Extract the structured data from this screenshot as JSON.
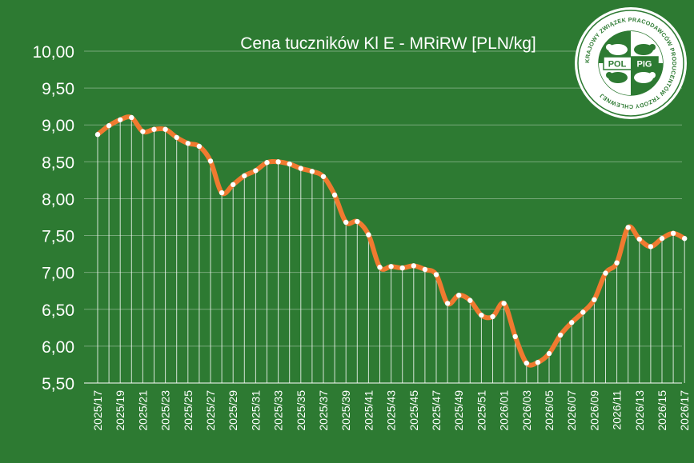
{
  "chart_data": {
    "type": "line",
    "title": "Cena tuczników Kl E - MRiRW [PLN/kg]",
    "ylim": [
      5.5,
      10.0
    ],
    "yticks": [
      "5,50",
      "6,00",
      "6,50",
      "7,00",
      "7,50",
      "8,00",
      "8,50",
      "9,00",
      "9,50",
      "10,00"
    ],
    "ytick_values": [
      5.5,
      6.0,
      6.5,
      7.0,
      7.5,
      8.0,
      8.5,
      9.0,
      9.5,
      10.0
    ],
    "grid": true,
    "x": [
      "2025/17",
      "2025/18",
      "2025/19",
      "2025/20",
      "2025/21",
      "2025/22",
      "2025/23",
      "2025/24",
      "2025/25",
      "2025/26",
      "2025/27",
      "2025/28",
      "2025/29",
      "2025/30",
      "2025/31",
      "2025/32",
      "2025/33",
      "2025/34",
      "2025/35",
      "2025/36",
      "2025/37",
      "2025/38",
      "2025/39",
      "2025/40",
      "2025/41",
      "2025/42",
      "2025/43",
      "2025/44",
      "2025/45",
      "2025/46",
      "2025/47",
      "2025/48",
      "2025/49",
      "2025/50",
      "2025/51",
      "2025/52",
      "2026/01",
      "2026/02",
      "2026/03",
      "2026/04",
      "2026/05",
      "2026/06",
      "2026/07",
      "2026/08",
      "2026/09",
      "2026/10",
      "2026/11",
      "2026/12",
      "2026/13",
      "2026/14",
      "2026/15",
      "2026/16",
      "2026/17"
    ],
    "xtick_labels": [
      "2025/17",
      "2025/19",
      "2025/21",
      "2025/23",
      "2025/25",
      "2025/27",
      "2025/29",
      "2025/31",
      "2025/33",
      "2025/35",
      "2025/37",
      "2025/39",
      "2025/41",
      "2025/43",
      "2025/45",
      "2025/47",
      "2025/49",
      "2025/51",
      "2026/01",
      "2026/03",
      "2026/05",
      "2026/07",
      "2026/09",
      "2026/11",
      "2026/13",
      "2026/15",
      "2026/17"
    ],
    "series": [
      {
        "color": "#f07a30",
        "values": [
          8.87,
          8.99,
          9.07,
          9.1,
          8.91,
          8.94,
          8.94,
          8.83,
          8.75,
          8.71,
          8.51,
          8.08,
          8.19,
          8.31,
          8.38,
          8.49,
          8.5,
          8.47,
          8.41,
          8.37,
          8.3,
          8.05,
          7.68,
          7.69,
          7.51,
          7.07,
          7.08,
          7.06,
          7.09,
          7.04,
          6.97,
          6.58,
          6.69,
          6.62,
          6.42,
          6.4,
          6.58,
          6.13,
          5.77,
          5.78,
          5.9,
          6.15,
          6.32,
          6.46,
          6.63,
          6.99,
          7.13,
          7.61,
          7.45,
          7.35,
          7.46,
          7.53,
          7.46
        ]
      }
    ]
  },
  "logo": {
    "center_text_left": "POL",
    "center_text_right": "PIG",
    "ring_text": "KRAJOWY ZWIĄZEK PRACODAWCÓW PRODUCENTÓW TRZODY CHLEWNEJ"
  },
  "colors": {
    "background": "#2d7a32",
    "line": "#f07a30",
    "marker": "#ffffff",
    "text": "#ffffff"
  }
}
